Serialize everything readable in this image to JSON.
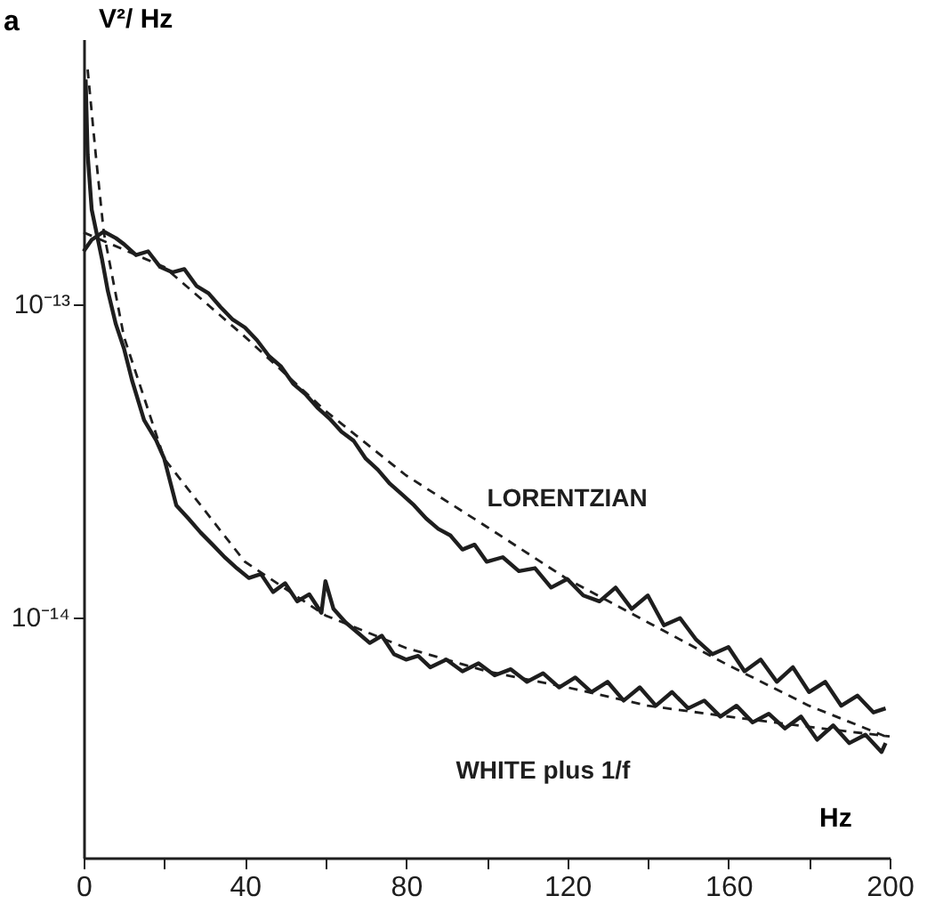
{
  "chart_data": {
    "type": "line",
    "xlabel": "Hz",
    "ylabel": "V²/ Hz",
    "annotations": [
      "a"
    ],
    "log": "y",
    "grid": false,
    "marker": "none",
    "xlim": [
      0,
      200
    ],
    "xticks": [
      0,
      {
        "value": 20,
        "label": null
      },
      40,
      {
        "value": 60,
        "label": null
      },
      80,
      {
        "value": 100,
        "label": null
      },
      120,
      {
        "value": 140,
        "label": null
      },
      160,
      {
        "value": 180,
        "label": null
      },
      200
    ],
    "ylim": [
      1.7e-15,
      7e-13
    ],
    "yticks": [
      {
        "value": 1e-13,
        "label": "10⁻¹³"
      },
      {
        "value": 1e-14,
        "label": "10⁻¹⁴"
      }
    ],
    "series": [
      {
        "name": "LORENTZIAN",
        "color": "#1e1e1e",
        "line_style": "solid",
        "x": [
          0,
          2,
          5,
          8,
          10,
          13,
          16,
          19,
          22,
          25,
          28,
          31,
          34,
          37,
          40,
          43,
          46,
          49,
          52,
          55,
          58,
          61,
          64,
          67,
          70,
          73,
          76,
          79,
          82,
          85,
          88,
          91,
          94,
          97,
          100,
          104,
          108,
          112,
          116,
          120,
          124,
          128,
          132,
          136,
          140,
          144,
          148,
          152,
          156,
          160,
          164,
          168,
          172,
          176,
          180,
          184,
          188,
          192,
          196,
          199
        ],
        "values": [
          1.47e-13,
          1.6e-13,
          1.7e-13,
          1.62e-13,
          1.55e-13,
          1.43e-13,
          1.47e-13,
          1.31e-13,
          1.26e-13,
          1.29e-13,
          1.14e-13,
          1.08e-13,
          9.75e-14,
          8.9e-14,
          8.4e-14,
          7.65e-14,
          6.8e-14,
          6.3e-14,
          5.55e-14,
          5.15e-14,
          4.66e-14,
          4.3e-14,
          3.9e-14,
          3.65e-14,
          3.2e-14,
          2.95e-14,
          2.66e-14,
          2.46e-14,
          2.27e-14,
          2.06e-14,
          1.91e-14,
          1.82e-14,
          1.64e-14,
          1.7e-14,
          1.5e-14,
          1.55e-14,
          1.4e-14,
          1.43e-14,
          1.24e-14,
          1.32e-14,
          1.17e-14,
          1.12e-14,
          1.24e-14,
          1.06e-14,
          1.17e-14,
          9.4e-15,
          9.9e-15,
          8.45e-15,
          7.6e-15,
          8e-15,
          6.7e-15,
          7.3e-15,
          6.2e-15,
          6.9e-15,
          5.75e-15,
          6.2e-15,
          5.2e-15,
          5.6e-15,
          4.95e-15,
          5.1e-15
        ]
      },
      {
        "name": "WHITE plus 1/f",
        "color": "#1e1e1e",
        "line_style": "solid",
        "x": [
          0.5,
          1,
          2,
          4.5,
          6,
          8,
          10,
          12,
          15,
          18,
          20,
          23,
          26,
          29,
          32,
          35,
          38,
          41,
          44,
          47,
          50,
          53,
          56,
          59,
          60,
          62,
          65,
          68,
          71,
          74,
          77,
          80,
          83,
          86,
          90,
          94,
          98,
          102,
          106,
          110,
          114,
          118,
          122,
          126,
          130,
          134,
          138,
          142,
          146,
          150,
          154,
          158,
          162,
          166,
          170,
          174,
          178,
          182,
          186,
          190,
          194,
          198,
          199
        ],
        "values": [
          5.2e-13,
          3e-13,
          2e-13,
          1.4e-13,
          1.1e-13,
          8.6e-14,
          7.2e-14,
          5.7e-14,
          4.25e-14,
          3.66e-14,
          3.2e-14,
          2.27e-14,
          2.06e-14,
          1.86e-14,
          1.7e-14,
          1.55e-14,
          1.43e-14,
          1.33e-14,
          1.37e-14,
          1.2e-14,
          1.28e-14,
          1.12e-14,
          1.18e-14,
          1.03e-14,
          1.3e-14,
          1.06e-14,
          9.6e-15,
          8.9e-15,
          8.25e-15,
          8.7e-15,
          7.6e-15,
          7.3e-15,
          7.5e-15,
          6.9e-15,
          7.3e-15,
          6.7e-15,
          7.1e-15,
          6.5e-15,
          6.8e-15,
          6.2e-15,
          6.6e-15,
          5.95e-15,
          6.4e-15,
          5.75e-15,
          6.2e-15,
          5.4e-15,
          5.95e-15,
          5.2e-15,
          5.75e-15,
          5.1e-15,
          5.4e-15,
          4.8e-15,
          5.2e-15,
          4.6e-15,
          4.9e-15,
          4.4e-15,
          4.8e-15,
          4.05e-15,
          4.5e-15,
          3.95e-15,
          4.2e-15,
          3.7e-15,
          3.95e-15
        ]
      },
      {
        "color": "#1e1e1e",
        "line_style": "dashed",
        "x": [
          0,
          20,
          40,
          60,
          80,
          100,
          120,
          140,
          160,
          180,
          200
        ],
        "values": [
          1.69e-13,
          1.31e-13,
          7.85e-14,
          4.55e-14,
          2.83e-14,
          1.94e-14,
          1.32e-14,
          9.6e-15,
          7e-15,
          5.2e-15,
          4.1e-15
        ]
      },
      {
        "color": "#1e1e1e",
        "line_style": "dashed",
        "x": [
          1,
          3,
          5,
          10,
          20,
          40,
          60,
          80,
          100,
          120,
          140,
          160,
          180,
          200
        ],
        "values": [
          5.6e-13,
          3e-13,
          1.69e-13,
          7.85e-14,
          3.2e-14,
          1.5e-14,
          1.01e-14,
          7.95e-15,
          6.7e-15,
          5.95e-15,
          5.2e-15,
          4.8e-15,
          4.45e-15,
          4.15e-15
        ]
      }
    ]
  }
}
